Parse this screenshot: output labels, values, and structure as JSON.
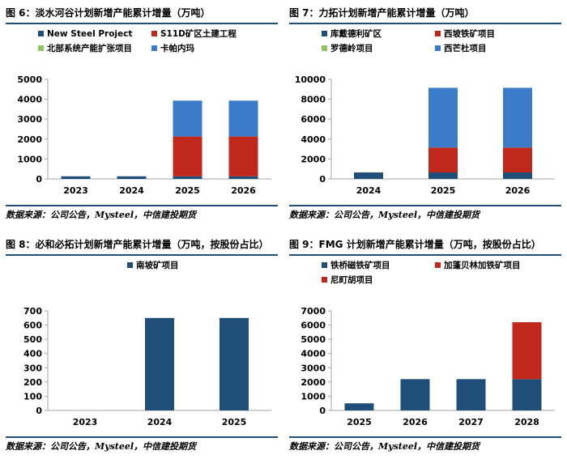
{
  "source_text": "数据来源：公司公告，Mysteel，中信建投期货",
  "chart_data": [
    {
      "id": "p6",
      "type": "bar",
      "stacked": true,
      "title": "图 6：淡水河谷计划新增产能累计增量（万吨）",
      "categories": [
        "2023",
        "2024",
        "2025",
        "2026"
      ],
      "ylim": [
        0,
        5000
      ],
      "yticks": [
        0,
        1000,
        2000,
        3000,
        4000,
        5000
      ],
      "grid": false,
      "legend_columns": 2,
      "series": [
        {
          "name": "New Steel Project",
          "color": "#1f4e79",
          "values": [
            130,
            130,
            130,
            130
          ]
        },
        {
          "name": "S11D矿区土建工程",
          "color": "#c0281c",
          "values": [
            0,
            0,
            2000,
            2000
          ]
        },
        {
          "name": "北部系统产能扩张项目",
          "color": "#8fc661",
          "values": [
            0,
            0,
            0,
            0
          ]
        },
        {
          "name": "卡帕内玛",
          "color": "#3a7cc9",
          "values": [
            0,
            0,
            1800,
            1800
          ]
        }
      ]
    },
    {
      "id": "p7",
      "type": "bar",
      "stacked": true,
      "title": "图 7：力拓计划新增产能累计增量（万吨）",
      "categories": [
        "2024",
        "2025",
        "2026"
      ],
      "ylim": [
        0,
        10000
      ],
      "yticks": [
        0,
        2000,
        4000,
        6000,
        8000,
        10000
      ],
      "grid": false,
      "legend_columns": 2,
      "series": [
        {
          "name": "库戴德利矿区",
          "color": "#1f4e79",
          "values": [
            650,
            650,
            650
          ]
        },
        {
          "name": "西坡铁矿项目",
          "color": "#c0281c",
          "values": [
            0,
            2500,
            2500
          ]
        },
        {
          "name": "罗德岭项目",
          "color": "#8fc661",
          "values": [
            0,
            0,
            0
          ]
        },
        {
          "name": "西芒杜项目",
          "color": "#3a7cc9",
          "values": [
            0,
            6000,
            6000
          ]
        }
      ]
    },
    {
      "id": "p8",
      "type": "bar",
      "stacked": true,
      "title": "图 8：必和必拓计划新增产能累计增量（万吨，按股份占比）",
      "categories": [
        "2023",
        "2024",
        "2025"
      ],
      "ylim": [
        0,
        700
      ],
      "yticks": [
        0,
        100,
        200,
        300,
        400,
        500,
        600,
        700
      ],
      "grid": false,
      "legend_columns": 1,
      "series": [
        {
          "name": "南坡矿项目",
          "color": "#1f4e79",
          "values": [
            0,
            650,
            650
          ]
        }
      ]
    },
    {
      "id": "p9",
      "type": "bar",
      "stacked": true,
      "title": "图 9：FMG 计划新增产能累计增量（万吨，按股份占比）",
      "categories": [
        "2025",
        "2026",
        "2027",
        "2028"
      ],
      "ylim": [
        0,
        7000
      ],
      "yticks": [
        0,
        1000,
        2000,
        3000,
        4000,
        5000,
        6000,
        7000
      ],
      "grid": false,
      "legend_columns": 2,
      "series": [
        {
          "name": "铁桥磁铁矿项目",
          "color": "#1f4e79",
          "values": [
            500,
            2200,
            2200,
            2200
          ]
        },
        {
          "name": "加蓬贝林加铁矿项目",
          "color": "#c0281c",
          "values": [
            0,
            0,
            0,
            0
          ]
        },
        {
          "name": "尼町胡项目",
          "color": "#c0281c",
          "values": [
            0,
            0,
            0,
            4000
          ]
        }
      ]
    }
  ]
}
